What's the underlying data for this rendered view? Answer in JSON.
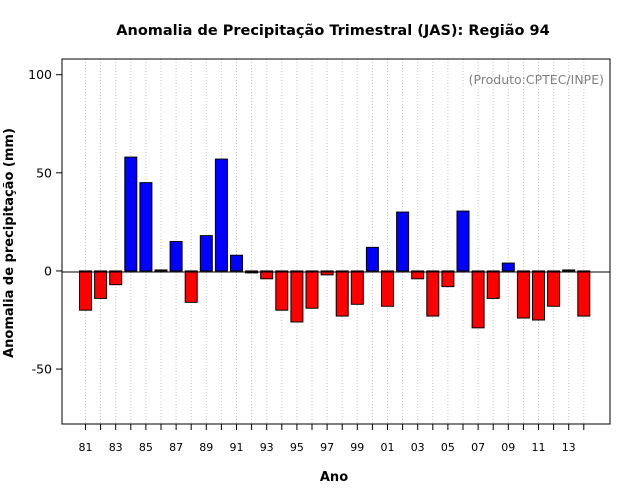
{
  "chart_data": {
    "type": "bar",
    "title": "Anomalia de Precipitação Trimestral (JAS): Região 94",
    "xlabel": "Ano",
    "ylabel": "Anomalia de precipitação (mm)",
    "annotation": "(Produto:CPTEC/INPE)",
    "ylim": [
      -78,
      108
    ],
    "yticks": [
      -50,
      0,
      50,
      100
    ],
    "grid": "vertical-dotted",
    "positive_color": "#0000ff",
    "negative_color": "#ff0000",
    "categories": [
      "81",
      "82",
      "83",
      "84",
      "85",
      "86",
      "87",
      "88",
      "89",
      "90",
      "91",
      "92",
      "93",
      "94",
      "95",
      "96",
      "97",
      "98",
      "99",
      "00",
      "01",
      "02",
      "03",
      "04",
      "05",
      "06",
      "07",
      "08",
      "09",
      "10",
      "11",
      "12",
      "13",
      "14"
    ],
    "xtick_labels": [
      "81",
      "83",
      "85",
      "87",
      "89",
      "91",
      "93",
      "95",
      "97",
      "99",
      "01",
      "03",
      "05",
      "07",
      "09",
      "11",
      "13"
    ],
    "values": [
      -20,
      -14,
      -7,
      58,
      45,
      0.5,
      15,
      -16,
      18,
      57,
      8,
      -1,
      -4,
      -20,
      -26,
      -19,
      -2,
      -23,
      -17,
      12,
      -18,
      30,
      -4,
      -23,
      -8,
      30.5,
      -29,
      -14,
      4,
      -24,
      -25,
      -18,
      0.5,
      -23
    ]
  }
}
